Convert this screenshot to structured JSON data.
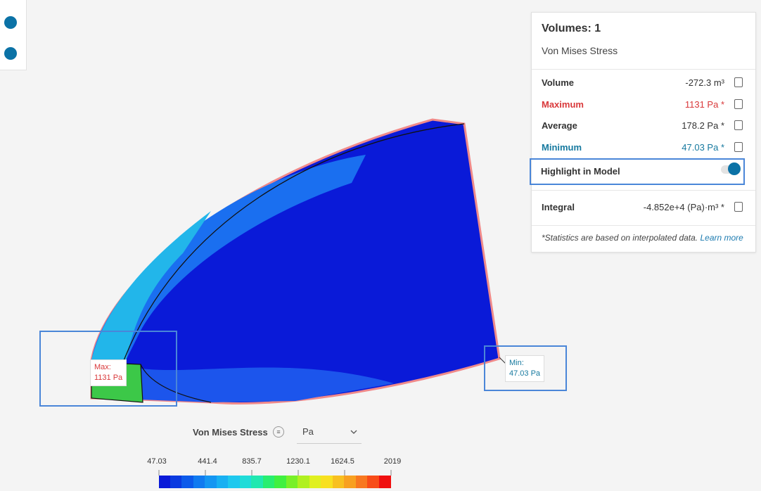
{
  "panel": {
    "title": "Volumes: 1",
    "subtitle": "Von Mises Stress",
    "rows": [
      {
        "label": "Volume",
        "value": "-272.3 m³"
      },
      {
        "label": "Maximum",
        "value": "1131 Pa *"
      },
      {
        "label": "Average",
        "value": "178.2 Pa *"
      },
      {
        "label": "Minimum",
        "value": "47.03 Pa *"
      }
    ],
    "highlight": "Highlight in Model",
    "integral": {
      "label": "Integral",
      "value": "-4.852e+4 (Pa)·m³ *"
    },
    "footnote": "*Statistics are based on interpolated data.",
    "link": "Learn more"
  },
  "markers": {
    "max": {
      "label": "Max:",
      "value": "1131 Pa"
    },
    "min": {
      "label": "Min:",
      "value": "47.03 Pa"
    }
  },
  "legend": {
    "title": "Von Mises Stress",
    "unit": "Pa",
    "ticks": [
      "47.03",
      "441.4",
      "835.7",
      "1230.1",
      "1624.5",
      "2019"
    ]
  }
}
